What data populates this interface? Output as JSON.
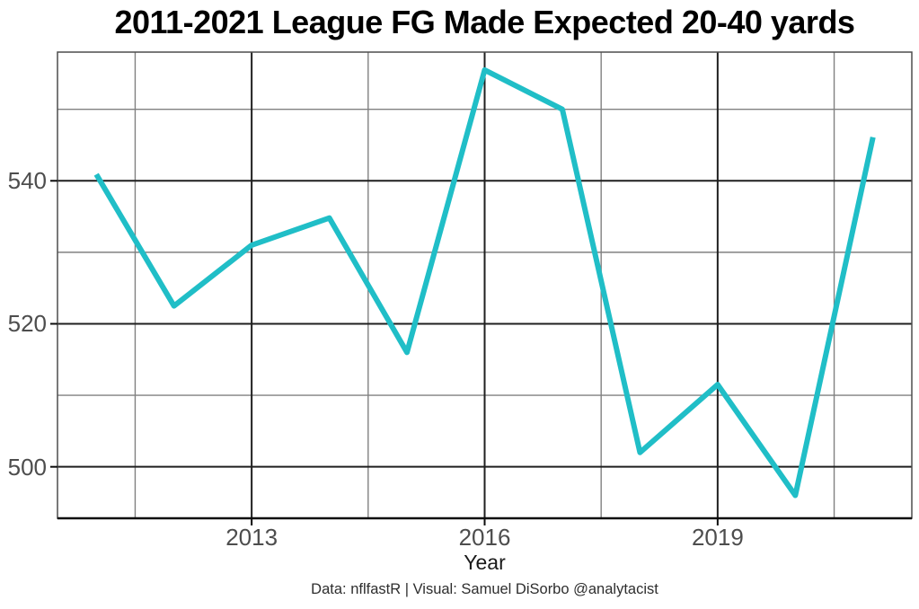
{
  "chart_data": {
    "type": "line",
    "title": "2011-2021 League FG Made Expected 20-40 yards",
    "xlabel": "Year",
    "ylabel": "",
    "caption": "Data: nflfastR | Visual: Samuel DiSorbo @analytacist",
    "x": [
      2011,
      2012,
      2013,
      2014,
      2015,
      2016,
      2017,
      2018,
      2019,
      2020,
      2021
    ],
    "values": [
      540.9,
      522.5,
      531.0,
      534.8,
      516.0,
      555.5,
      550.0,
      502.0,
      511.5,
      496.0,
      546.1
    ],
    "xlim": [
      2010.5,
      2021.5
    ],
    "ylim": [
      492.8,
      558.0
    ],
    "x_major_ticks": [
      {
        "value": 2013,
        "label": "2013"
      },
      {
        "value": 2016,
        "label": "2016"
      },
      {
        "value": 2019,
        "label": "2019"
      }
    ],
    "x_minor_gridlines": [
      2011.5,
      2014.5,
      2017.5,
      2020.5
    ],
    "y_major_ticks": [
      {
        "value": 500,
        "label": "500"
      },
      {
        "value": 520,
        "label": "520"
      },
      {
        "value": 540,
        "label": "540"
      }
    ],
    "y_minor_gridlines": [
      510,
      530,
      550
    ],
    "grid": "on",
    "legend": "none",
    "colors": {
      "line": "#20bec7",
      "grid_major": "#1f1f1f",
      "grid_minor": "#808080",
      "panel_border": "#4d4d4d",
      "axis_line": "#0d0d0d",
      "tick_text": "#4d4d4d",
      "title_text": "#000000"
    }
  }
}
